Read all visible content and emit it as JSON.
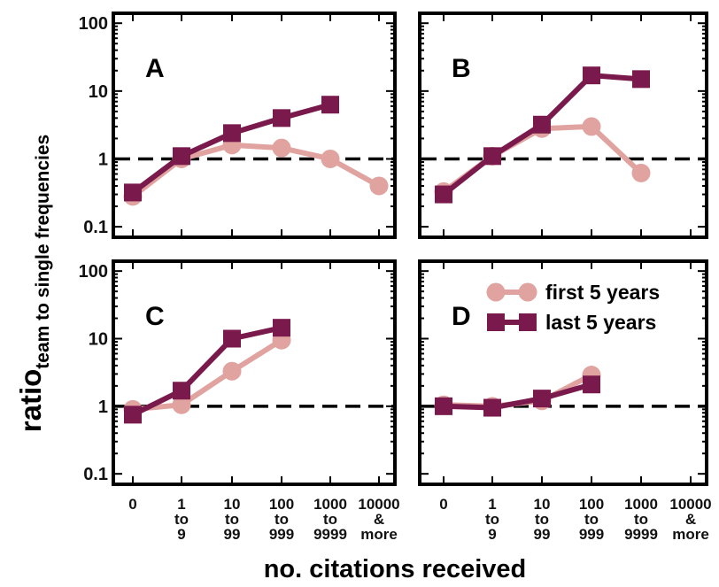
{
  "chart_data": {
    "type": "line",
    "ylabel_main": "ratio",
    "ylabel_sub": "team to single frequencies",
    "xlabel": "no. citations received",
    "yscale": "log",
    "ylim": [
      0.07,
      140
    ],
    "yticks": [
      "0.1",
      "1",
      "10",
      "100"
    ],
    "ytick_values": [
      0.1,
      1,
      10,
      100
    ],
    "reference_line": 1,
    "categories": [
      [
        "0"
      ],
      [
        "1",
        "to",
        "9"
      ],
      [
        "10",
        "to",
        "99"
      ],
      [
        "100",
        "to",
        "999"
      ],
      [
        "1000",
        "to",
        "9999"
      ],
      [
        "10000",
        "&",
        "more"
      ]
    ],
    "legend": {
      "placement": "top-right of panel D",
      "entries": [
        {
          "label": "first 5 years",
          "marker": "circle",
          "color": "#e0a3a0"
        },
        {
          "label": "last 5 years",
          "marker": "square",
          "color": "#7a1a4c"
        }
      ]
    },
    "panels": [
      {
        "label": "A",
        "series": [
          {
            "name": "first 5 years",
            "values": [
              0.28,
              1.0,
              1.6,
              1.45,
              1.0,
              0.4
            ]
          },
          {
            "name": "last 5 years",
            "values": [
              0.32,
              1.1,
              2.4,
              4.0,
              6.3,
              null
            ]
          }
        ]
      },
      {
        "label": "B",
        "series": [
          {
            "name": "first 5 years",
            "values": [
              0.33,
              1.1,
              2.8,
              3.0,
              0.62,
              null
            ]
          },
          {
            "name": "last 5 years",
            "values": [
              0.3,
              1.1,
              3.2,
              17.0,
              15.0,
              null
            ]
          }
        ]
      },
      {
        "label": "C",
        "series": [
          {
            "name": "first 5 years",
            "values": [
              0.9,
              1.05,
              3.3,
              9.5,
              null,
              null
            ]
          },
          {
            "name": "last 5 years",
            "values": [
              0.75,
              1.7,
              10.0,
              14.5,
              null,
              null
            ]
          }
        ]
      },
      {
        "label": "D",
        "series": [
          {
            "name": "first 5 years",
            "values": [
              1.05,
              1.0,
              1.2,
              2.9,
              null,
              null
            ]
          },
          {
            "name": "last 5 years",
            "values": [
              1.0,
              0.95,
              1.3,
              2.1,
              null,
              null
            ]
          }
        ]
      }
    ]
  }
}
